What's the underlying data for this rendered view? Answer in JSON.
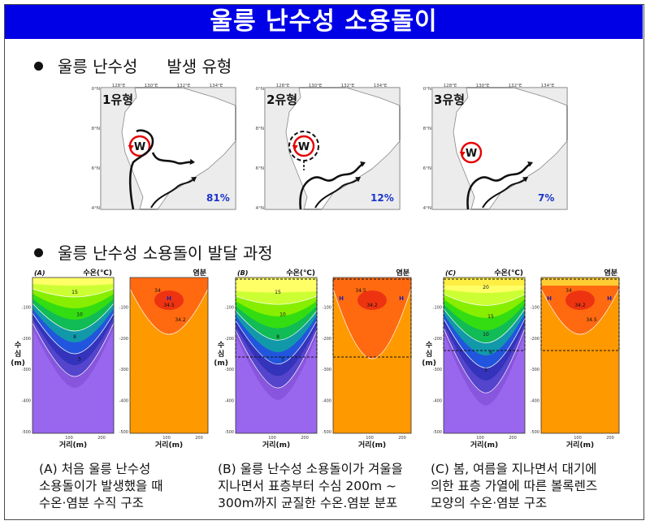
{
  "title": "울릉 난수성 소용돌이",
  "section1": {
    "label_a": "울릉 난수성",
    "label_b": "발생 유형"
  },
  "section2": {
    "label": "울릉 난수성 소용돌이 발달 과정"
  },
  "map_axes": {
    "lon_ticks": [
      "128°E",
      "130°E",
      "132°E",
      "134°E"
    ],
    "lat_ticks": [
      "40°N",
      "38°N",
      "36°N",
      "34°N"
    ]
  },
  "eddy_marker": "W",
  "types": [
    {
      "name": "1유형",
      "percent": "81%"
    },
    {
      "name": "2유형",
      "percent": "12%"
    },
    {
      "name": "3유형",
      "percent": "7%"
    }
  ],
  "profiles": {
    "panel_labels": [
      "(A)",
      "(B)",
      "(C)"
    ],
    "temp_label": "수온(℃)",
    "sal_label": "염분",
    "depth_label": [
      "수",
      "심",
      "(m)"
    ],
    "x_label": "거리(m)",
    "depth_ticks": [
      "-100",
      "-200",
      "-300",
      "-400",
      "-500"
    ],
    "x_ticks": [
      "100",
      "200"
    ],
    "temp_contours": {
      "A": [
        "15",
        "10",
        "8",
        "5"
      ],
      "B": [
        "15",
        "10",
        "8",
        "5"
      ],
      "C": [
        "20",
        "15",
        "10",
        "8",
        "5"
      ]
    },
    "sal_contours": {
      "A": [
        "34",
        "34.5",
        "34.2"
      ],
      "B": [
        "34.5",
        "34.2"
      ],
      "C": [
        "34",
        "34.2",
        "34.5"
      ]
    },
    "high_marker": "H"
  },
  "captions": [
    [
      "(A) 처음 울릉 난수성",
      "소용돌이가 발생했을 때",
      "수온·염분 수직 구조"
    ],
    [
      "(B) 울릉 난수성 소용돌이가 겨울을",
      "지나면서 표층부터 수심 200m ~",
      "300m까지 균질한 수온.염분 분포"
    ],
    [
      "(C) 봄, 여름을 지나면서 대기에",
      "의한 표층 가열에 따른 볼록렌즈",
      "모양의 수온·염분 구조"
    ]
  ],
  "colors": {
    "title_bg": "#0000e6",
    "eddy": "#e60000",
    "percent": "#1a33cc",
    "salinity": "#ff8800"
  }
}
